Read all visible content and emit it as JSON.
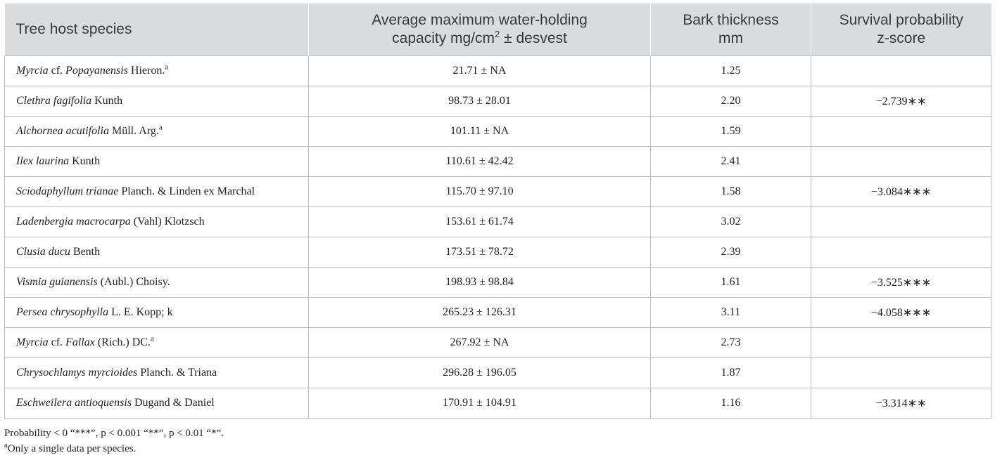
{
  "header": {
    "col1": "Tree host species",
    "col2_line1": "Average maximum water-holding",
    "col2_line2": "capacity mg/cm",
    "col2_sup": "2",
    "col2_tail": " ± desvest",
    "col3_line1": "Bark thickness",
    "col3_line2": "mm",
    "col4_line1": "Survival probability",
    "col4_line2": "z-score"
  },
  "rows": [
    {
      "species": "Myrcia",
      "rest": " cf. ",
      "species2": "Popayanensis",
      "authority": " Hieron.",
      "sup": "a",
      "capacity": "21.71 ± NA",
      "bark": "1.25",
      "z": ""
    },
    {
      "species": "Clethra fagifolia",
      "rest": "",
      "species2": "",
      "authority": " Kunth",
      "sup": "",
      "capacity": "98.73 ± 28.01",
      "bark": "2.20",
      "z": "−2.739∗∗"
    },
    {
      "species": "Alchornea acutifolia",
      "rest": "",
      "species2": "",
      "authority": " Müll. Arg.",
      "sup": "a",
      "capacity": "101.11 ± NA",
      "bark": "1.59",
      "z": ""
    },
    {
      "species": "Ilex laurina",
      "rest": "",
      "species2": "",
      "authority": " Kunth",
      "sup": "",
      "capacity": "110.61 ± 42.42",
      "bark": "2.41",
      "z": ""
    },
    {
      "species": "Sciodaphyllum trianae",
      "rest": "",
      "species2": "",
      "authority": " Planch. & Linden ex Marchal",
      "sup": "",
      "capacity": "115.70 ± 97.10",
      "bark": "1.58",
      "z": "−3.084∗∗∗"
    },
    {
      "species": "Ladenbergia macrocarpa",
      "rest": "",
      "species2": "",
      "authority": " (Vahl) Klotzsch",
      "sup": "",
      "capacity": "153.61 ± 61.74",
      "bark": "3.02",
      "z": ""
    },
    {
      "species": "Clusia ducu",
      "rest": "",
      "species2": "",
      "authority": " Benth",
      "sup": "",
      "capacity": "173.51 ± 78.72",
      "bark": "2.39",
      "z": ""
    },
    {
      "species": "Vismia guianensis",
      "rest": "",
      "species2": "",
      "authority": " (Aubl.) Choisy.",
      "sup": "",
      "capacity": "198.93 ± 98.84",
      "bark": "1.61",
      "z": "−3.525∗∗∗"
    },
    {
      "species": "Persea chrysophylla",
      "rest": "",
      "species2": "",
      "authority": " L. E. Kopp; k",
      "sup": "",
      "capacity": "265.23 ± 126.31",
      "bark": "3.11",
      "z": "−4.058∗∗∗"
    },
    {
      "species": "Myrcia",
      "rest": " cf. ",
      "species2": "Fallax",
      "authority": " (Rich.) DC.",
      "sup": "a",
      "capacity": "267.92 ± NA",
      "bark": "2.73",
      "z": ""
    },
    {
      "species": "Chrysochlamys myrcioides",
      "rest": "",
      "species2": "",
      "authority": " Planch. & Triana",
      "sup": "",
      "capacity": "296.28 ± 196.05",
      "bark": "1.87",
      "z": ""
    },
    {
      "species": "Eschweilera antioquensis",
      "rest": "",
      "species2": "",
      "authority": " Dugand & Daniel",
      "sup": "",
      "capacity": "170.91 ± 104.91",
      "bark": "1.16",
      "z": "−3.314∗∗"
    }
  ],
  "notes": {
    "probability": "Probability < 0 “***”, p < 0.001 “**”, p < 0.01 “*”.",
    "single_sup": "a",
    "single": "Only a single data per species."
  }
}
